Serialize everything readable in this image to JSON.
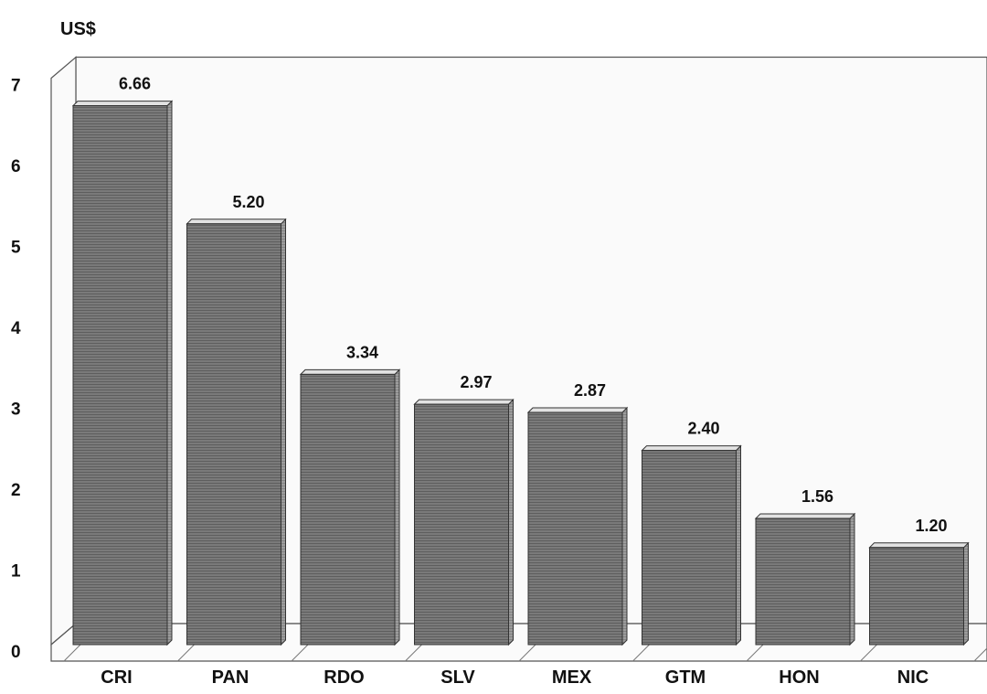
{
  "chart_data": {
    "type": "bar",
    "unit_label": "US$",
    "categories": [
      "CRI",
      "PAN",
      "RDO",
      "SLV",
      "MEX",
      "GTM",
      "HON",
      "NIC"
    ],
    "values": [
      6.66,
      5.2,
      3.34,
      2.97,
      2.87,
      2.4,
      1.56,
      1.2
    ],
    "value_labels": [
      "6.66",
      "5.20",
      "3.34",
      "2.97",
      "2.87",
      "2.40",
      "1.56",
      "1.20"
    ],
    "yticks": [
      "0",
      "1",
      "2",
      "3",
      "4",
      "5",
      "6",
      "7"
    ],
    "ylim": [
      0,
      7
    ],
    "grid": false,
    "colors": {
      "bar_front": "#7a7a7a",
      "bar_side": "#9a9a9a",
      "bar_top": "#e2e2e2",
      "stripe": "#5e5e5e"
    }
  }
}
